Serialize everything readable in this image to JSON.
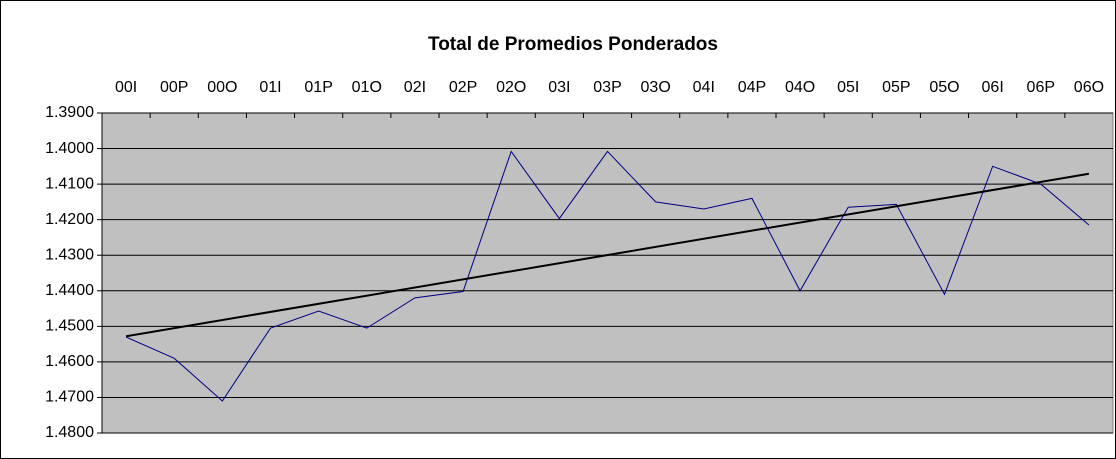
{
  "chart_data": {
    "type": "line",
    "title": "Total de Promedios Ponderados",
    "categories": [
      "00I",
      "00P",
      "00O",
      "01I",
      "01P",
      "01O",
      "02I",
      "02P",
      "02O",
      "03I",
      "03P",
      "03O",
      "04I",
      "04P",
      "04O",
      "05I",
      "05P",
      "05O",
      "06I",
      "06P",
      "06O"
    ],
    "series": [
      {
        "name": "Total de Promedios Ponderados",
        "color": "#000080",
        "values": [
          1.453,
          1.459,
          1.471,
          1.4505,
          1.4457,
          1.4505,
          1.442,
          1.4402,
          1.4008,
          1.4197,
          1.4008,
          1.415,
          1.417,
          1.414,
          1.44,
          1.4165,
          1.4157,
          1.441,
          1.405,
          1.41,
          1.4215
        ]
      }
    ],
    "trendline": {
      "type": "linear",
      "color": "#000000"
    },
    "ylim": [
      1.39,
      1.48
    ],
    "y_reversed": true,
    "yticks": [
      {
        "value": 1.39,
        "label": "1.3900"
      },
      {
        "value": 1.4,
        "label": "1.4000"
      },
      {
        "value": 1.41,
        "label": "1.4100"
      },
      {
        "value": 1.42,
        "label": "1.4200"
      },
      {
        "value": 1.43,
        "label": "1.4300"
      },
      {
        "value": 1.44,
        "label": "1.4400"
      },
      {
        "value": 1.45,
        "label": "1.4500"
      },
      {
        "value": 1.46,
        "label": "1.4600"
      },
      {
        "value": 1.47,
        "label": "1.4700"
      },
      {
        "value": 1.48,
        "label": "1.4800"
      }
    ],
    "grid": true,
    "plot_background": "#c0c0c0",
    "x_axis_position": "top"
  }
}
